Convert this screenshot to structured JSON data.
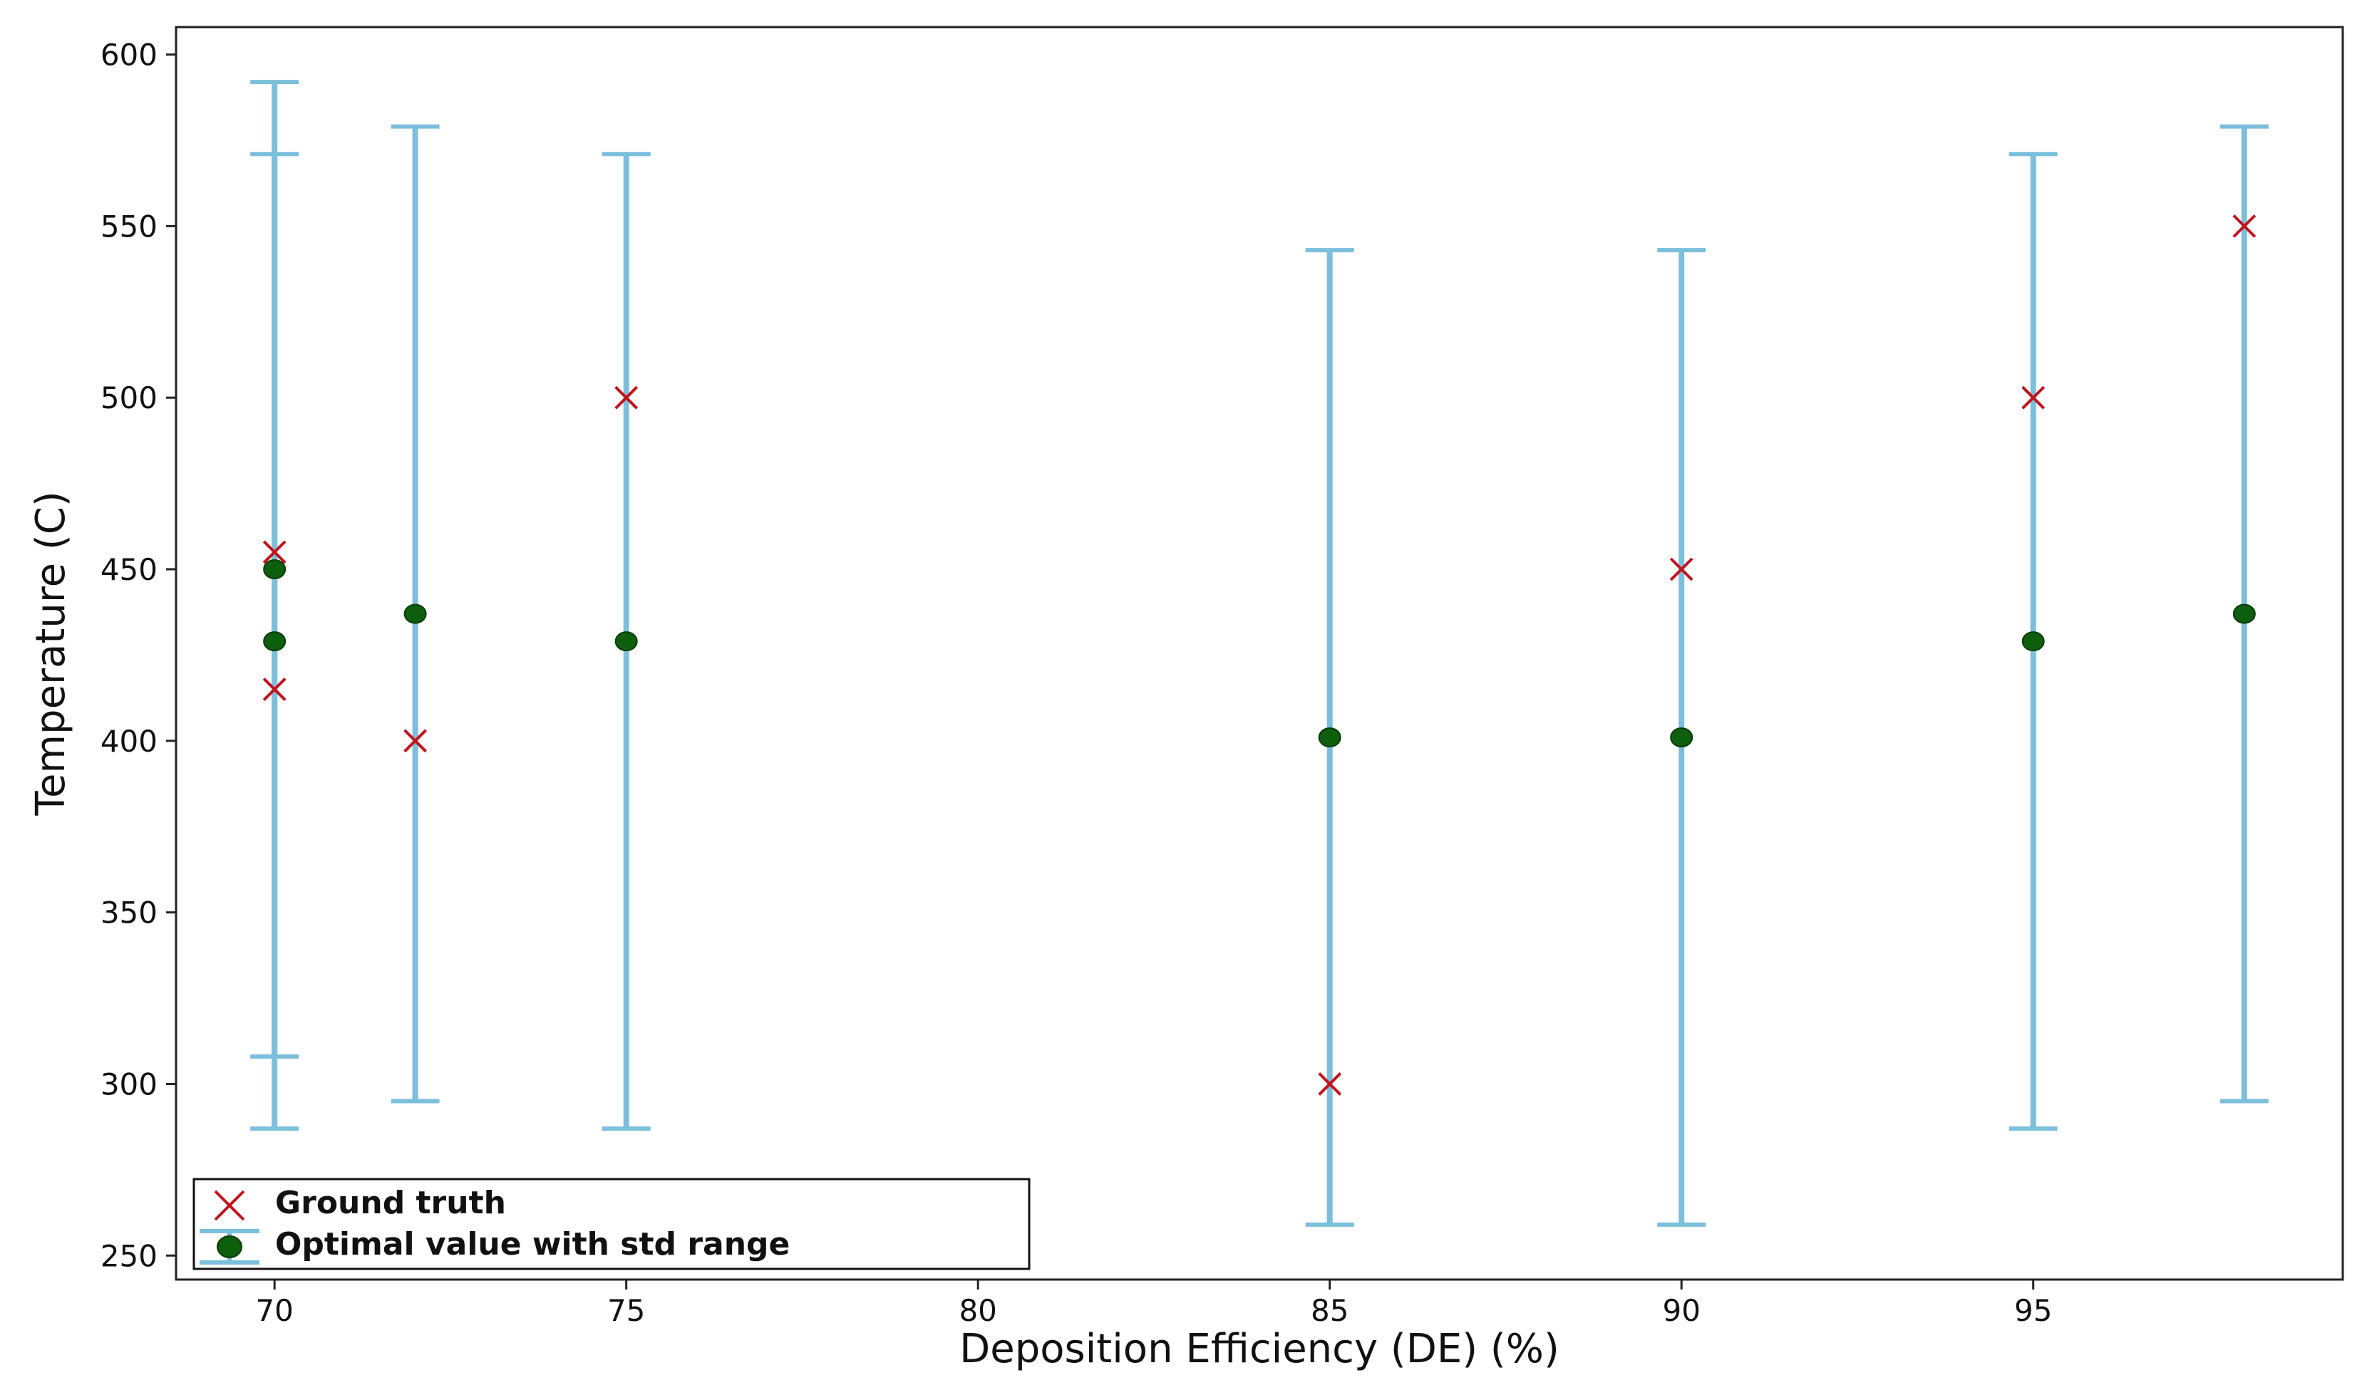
{
  "chart_data": {
    "type": "scatter",
    "title": "",
    "xlabel": "Deposition Efficiency (DE) (%)",
    "ylabel": "Temperature (C)",
    "xlim": [
      68.6,
      99.4
    ],
    "ylim": [
      243,
      608
    ],
    "xticks": [
      70,
      75,
      80,
      85,
      90,
      95
    ],
    "yticks": [
      250,
      300,
      350,
      400,
      450,
      500,
      550,
      600
    ],
    "grid": false,
    "legend": {
      "location": "lower-left",
      "entries": [
        {
          "label": "Ground truth",
          "marker": "x",
          "color": "#c0141c"
        },
        {
          "label": "Optimal value with std range",
          "marker": "o",
          "color": "#0d5e0d"
        }
      ]
    },
    "series": [
      {
        "name": "Ground truth",
        "points": [
          {
            "x": 70,
            "y": 455
          },
          {
            "x": 70,
            "y": 415
          },
          {
            "x": 72,
            "y": 400
          },
          {
            "x": 75,
            "y": 500
          },
          {
            "x": 85,
            "y": 300
          },
          {
            "x": 90,
            "y": 450
          },
          {
            "x": 95,
            "y": 500
          },
          {
            "x": 98,
            "y": 550
          }
        ]
      },
      {
        "name": "Optimal value with std range",
        "points": [
          {
            "x": 70,
            "y": 450,
            "lower": 308,
            "upper": 592
          },
          {
            "x": 70,
            "y": 429,
            "lower": 287,
            "upper": 571
          },
          {
            "x": 72,
            "y": 437,
            "lower": 295,
            "upper": 579
          },
          {
            "x": 75,
            "y": 429,
            "lower": 287,
            "upper": 571
          },
          {
            "x": 85,
            "y": 401,
            "lower": 259,
            "upper": 543
          },
          {
            "x": 90,
            "y": 401,
            "lower": 259,
            "upper": 543
          },
          {
            "x": 95,
            "y": 429,
            "lower": 287,
            "upper": 571
          },
          {
            "x": 98,
            "y": 437,
            "lower": 295,
            "upper": 579
          }
        ]
      }
    ],
    "connectors": [
      {
        "x": 70,
        "from": 455,
        "to": 450
      },
      {
        "x": 70,
        "from": 415,
        "to": 429
      },
      {
        "x": 72,
        "from": 400,
        "to": 437
      },
      {
        "x": 75,
        "from": 500,
        "to": 429
      },
      {
        "x": 85,
        "from": 300,
        "to": 401
      },
      {
        "x": 90,
        "from": 450,
        "to": 401
      },
      {
        "x": 95,
        "from": 500,
        "to": 429
      },
      {
        "x": 98,
        "from": 550,
        "to": 437
      }
    ],
    "colors": {
      "errorbar": "#7bbfdc",
      "ground_truth": "#c0141c",
      "optimal": "#0d5e0d",
      "connector": "#4a4a4a"
    }
  }
}
